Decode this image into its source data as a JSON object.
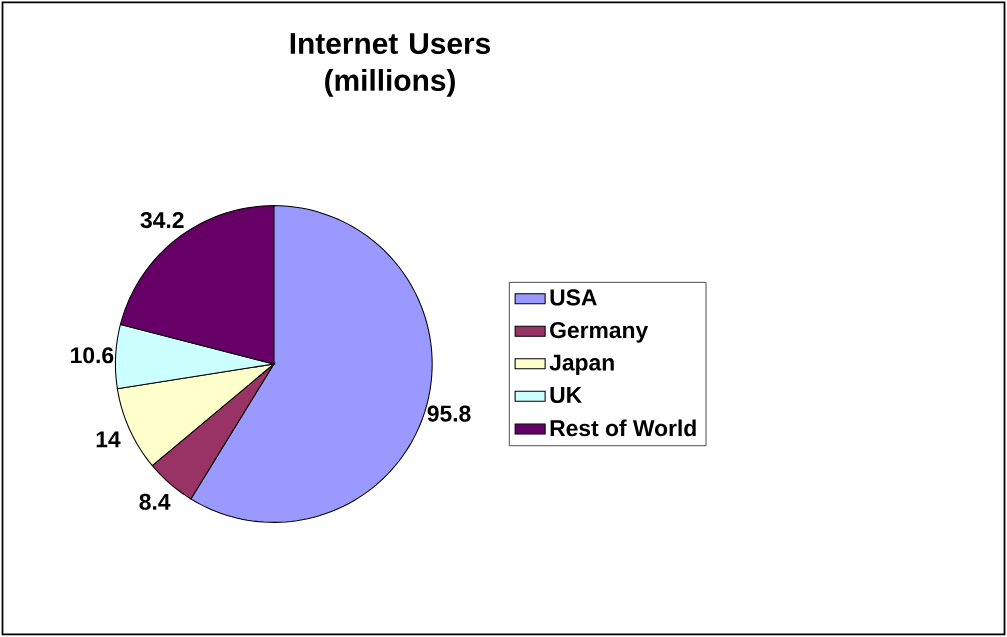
{
  "chart_data": {
    "type": "pie",
    "title": "Internet Users (millions)",
    "categories": [
      "USA",
      "Germany",
      "Japan",
      "UK",
      "Rest of World"
    ],
    "values": [
      95.8,
      8.4,
      14,
      10.6,
      34.2
    ],
    "colors": [
      "#9999ff",
      "#993366",
      "#ffffcc",
      "#ccffff",
      "#660066"
    ],
    "data_labels": true,
    "legend": "right"
  }
}
